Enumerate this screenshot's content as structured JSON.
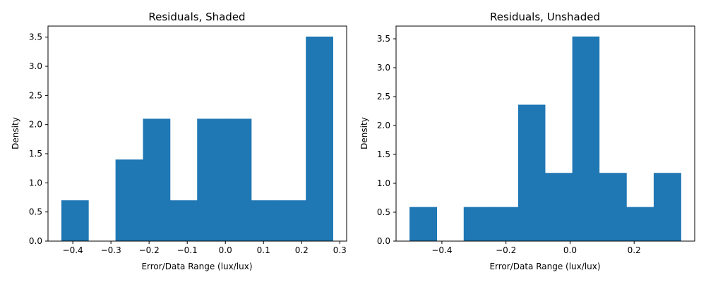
{
  "chart_data": [
    {
      "type": "bar",
      "subtype": "histogram",
      "title": "Residuals, Shaded",
      "xlabel": "Error/Data Range (lux/lux)",
      "ylabel": "Density",
      "xlim": [
        -0.465,
        0.318
      ],
      "ylim": [
        0,
        3.69
      ],
      "xticks": [
        -0.4,
        -0.3,
        -0.2,
        -0.1,
        0.0,
        0.1,
        0.2,
        0.3
      ],
      "xtick_labels": [
        "−0.4",
        "−0.3",
        "−0.2",
        "−0.1",
        "0.0",
        "0.1",
        "0.2",
        "0.3"
      ],
      "yticks": [
        0,
        0.5,
        1.0,
        1.5,
        2.0,
        2.5,
        3.0,
        3.5
      ],
      "ytick_labels": [
        "0.0",
        "0.5",
        "1.0",
        "1.5",
        "2.0",
        "2.5",
        "3.0",
        "3.5"
      ],
      "bin_edges": [
        -0.43,
        -0.359,
        -0.288,
        -0.216,
        -0.145,
        -0.074,
        -0.003,
        0.068,
        0.139,
        0.211,
        0.282
      ],
      "values": [
        0.7,
        0.0,
        1.4,
        2.1,
        0.7,
        2.1,
        2.1,
        0.7,
        0.7,
        3.51
      ],
      "color": "#1f77b4",
      "grid": false
    },
    {
      "type": "bar",
      "subtype": "histogram",
      "title": "Residuals, Unshaded",
      "xlabel": "Error/Data Range (lux/lux)",
      "ylabel": "Density",
      "xlim": [
        -0.543,
        0.389
      ],
      "ylim": [
        0,
        3.72
      ],
      "xticks": [
        -0.4,
        -0.2,
        0.0,
        0.2
      ],
      "xtick_labels": [
        "−0.4",
        "−0.2",
        "0.0",
        "0.2"
      ],
      "yticks": [
        0,
        0.5,
        1.0,
        1.5,
        2.0,
        2.5,
        3.0,
        3.5
      ],
      "ytick_labels": [
        "0.0",
        "0.5",
        "1.0",
        "1.5",
        "2.0",
        "2.5",
        "3.0",
        "3.5"
      ],
      "bin_edges": [
        -0.501,
        -0.416,
        -0.332,
        -0.247,
        -0.162,
        -0.078,
        0.007,
        0.091,
        0.176,
        0.261,
        0.346
      ],
      "values": [
        0.59,
        0.0,
        0.59,
        0.59,
        2.36,
        1.18,
        3.54,
        1.18,
        0.59,
        1.18
      ],
      "color": "#1f77b4",
      "grid": false
    }
  ]
}
